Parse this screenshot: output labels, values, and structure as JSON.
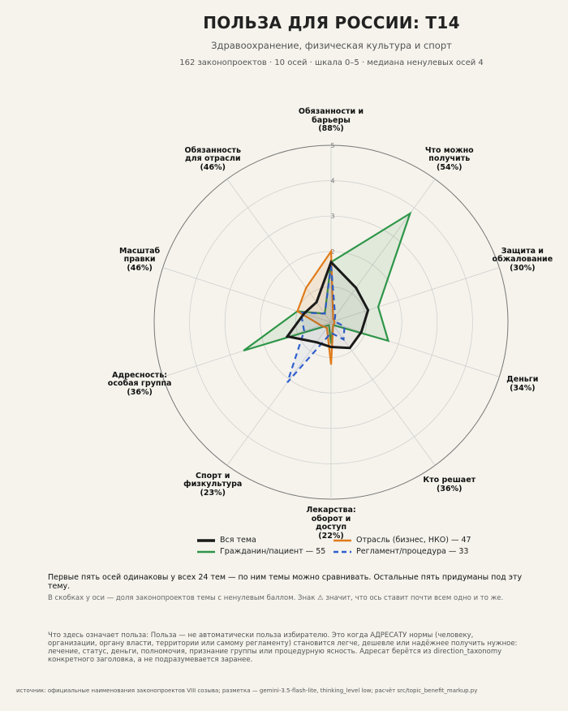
{
  "title": "ПОЛЬЗА ДЛЯ РОССИИ: Т14",
  "subtitle": "Здравоохранение, физическая культура и спорт",
  "meta": "162 законопроектов · 10 осей · шкала 0–5 · медиана ненулевых осей 4",
  "note1": "Первые пять осей одинаковы у всех 24 тем — по ним темы можно сравнивать. Остальные пять придуманы под эту тему.",
  "note2": "В скобках у оси — доля законопроектов темы с ненулевым баллом. Знак ⚠ значит, что ось ставит почти всем одно и то же.",
  "note3": "Что здесь означает польза: Польза — не автоматически польза избирателю. Это когда АДРЕСАТУ нормы (человеку, организации, органу власти, территории или самому регламенту) становится легче, дешевле или надёжнее получить нужное: лечение, статус, деньги, полномочия, признание группы или процедурную ясность. Адресат берётся из direction_taxonomy конкретного заголовка, а не подразумевается заранее.",
  "source": "источник: официальные наименования законопроектов VIII созыва; разметка — gemini-3.5-flash-lite, thinking_level low; расчёт src/topic_benefit_markup.py",
  "colors": {
    "all": "#1a1a1a",
    "industry": "#e07b1a",
    "citizen": "#2e9648",
    "procedure": "#2f5fce",
    "grid": "#cccccc",
    "outer": "#777777"
  },
  "chart_data": {
    "type": "radar",
    "scale": [
      0,
      5
    ],
    "rticks": [
      1,
      2,
      3,
      4,
      5
    ],
    "tick_labels": [
      "2",
      "3",
      "4",
      "5"
    ],
    "axes": [
      {
        "label": "Обязанности и\nбарьеры",
        "pct": "(88%)"
      },
      {
        "label": "Что можно\nполучить",
        "pct": "(54%)"
      },
      {
        "label": "Защита и\nобжалование",
        "pct": "(30%)"
      },
      {
        "label": "Деньги",
        "pct": "(34%)"
      },
      {
        "label": "Кто решает",
        "pct": "(36%)"
      },
      {
        "label": "Лекарства:\nоборот и\nдоступ",
        "pct": "(22%)"
      },
      {
        "label": "Спорт и\nфизкультура",
        "pct": "(23%)"
      },
      {
        "label": "Адресность:\nособая группа",
        "pct": "(36%)"
      },
      {
        "label": "Масштаб\nправки",
        "pct": "(46%)"
      },
      {
        "label": "Обязанность\nдля отрасли",
        "pct": "(46%)"
      }
    ],
    "series": [
      {
        "key": "all",
        "name": "Вся тема",
        "values": [
          1.7,
          1.2,
          1.1,
          0.9,
          0.9,
          0.7,
          0.7,
          1.3,
          0.8,
          0.7
        ]
      },
      {
        "key": "industry",
        "name": "Отрасль (бизнес, НКО) — 47",
        "values": [
          2.0,
          0.1,
          0.1,
          0.1,
          0.1,
          1.2,
          0.2,
          0.3,
          1.0,
          1.2
        ]
      },
      {
        "key": "citizen",
        "name": "Гражданин/пациент — 55",
        "values": [
          1.7,
          3.8,
          1.4,
          1.7,
          0.1,
          0.6,
          0.1,
          2.6,
          1.0,
          0.3
        ]
      },
      {
        "key": "procedure",
        "name": "Регламент/процедура — 33",
        "values": [
          1.6,
          0.2,
          0.1,
          0.4,
          0.6,
          0.3,
          2.1,
          0.8,
          0.9,
          0.3
        ]
      }
    ]
  }
}
